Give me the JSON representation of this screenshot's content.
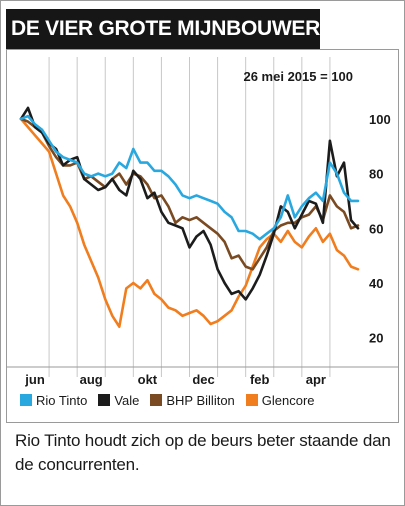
{
  "title": "DE VIER GROTE MIJNBOUWERS",
  "caption": "Rio Tinto houdt zich op de beurs beter staande dan de concurrenten.",
  "chart_data": {
    "type": "line",
    "subtitle": "26 mei 2015 = 100",
    "x_labels": [
      "jun",
      "aug",
      "okt",
      "dec",
      "feb",
      "apr"
    ],
    "y_ticks": [
      20,
      40,
      60,
      80,
      100
    ],
    "ylim": [
      10,
      108
    ],
    "grid": "vertical",
    "legend_position": "bottom",
    "x_range": [
      0,
      12
    ],
    "series": [
      {
        "name": "Rio Tinto",
        "color": "#29a8e0",
        "x": [
          0,
          0.25,
          0.5,
          0.75,
          1,
          1.25,
          1.5,
          1.75,
          2,
          2.25,
          2.5,
          2.75,
          3,
          3.25,
          3.5,
          3.75,
          4,
          4.25,
          4.5,
          4.75,
          5,
          5.25,
          5.5,
          5.75,
          6,
          6.25,
          6.5,
          6.75,
          7,
          7.25,
          7.5,
          7.75,
          8,
          8.25,
          8.5,
          8.75,
          9,
          9.25,
          9.5,
          9.75,
          10,
          10.25,
          10.5,
          10.75,
          11,
          11.25,
          11.5,
          11.75,
          12
        ],
        "values": [
          100,
          101,
          98,
          96,
          92,
          88,
          86,
          85,
          84,
          80,
          79,
          80,
          79,
          80,
          84,
          82,
          89,
          84,
          84,
          81,
          81,
          79,
          76,
          72,
          71,
          72,
          71,
          70,
          69,
          66,
          64,
          59,
          59,
          58,
          56,
          58,
          60,
          64,
          72,
          64,
          68,
          71,
          73,
          70,
          84,
          80,
          73,
          70,
          70
        ]
      },
      {
        "name": "Vale",
        "color": "#1c1c1c",
        "x": [
          0,
          0.25,
          0.5,
          0.75,
          1,
          1.25,
          1.5,
          1.75,
          2,
          2.25,
          2.5,
          2.75,
          3,
          3.25,
          3.5,
          3.75,
          4,
          4.25,
          4.5,
          4.75,
          5,
          5.25,
          5.5,
          5.75,
          6,
          6.25,
          6.5,
          6.75,
          7,
          7.25,
          7.5,
          7.75,
          8,
          8.25,
          8.5,
          8.75,
          9,
          9.25,
          9.5,
          9.75,
          10,
          10.25,
          10.5,
          10.75,
          11,
          11.25,
          11.5,
          11.75,
          12
        ],
        "values": [
          100,
          104,
          97,
          95,
          91,
          89,
          83,
          85,
          86,
          78,
          76,
          74,
          75,
          78,
          74,
          72,
          81,
          78,
          71,
          73,
          66,
          62,
          61,
          60,
          53,
          57,
          59,
          54,
          45,
          40,
          36,
          37,
          34,
          38,
          43,
          50,
          58,
          68,
          66,
          60,
          65,
          70,
          69,
          62,
          92,
          79,
          84,
          63,
          60
        ]
      },
      {
        "name": "BHP Billiton",
        "color": "#7a4a22",
        "x": [
          0,
          0.25,
          0.5,
          0.75,
          1,
          1.25,
          1.5,
          1.75,
          2,
          2.25,
          2.5,
          2.75,
          3,
          3.25,
          3.5,
          3.75,
          4,
          4.25,
          4.5,
          4.75,
          5,
          5.25,
          5.5,
          5.75,
          6,
          6.25,
          6.5,
          6.75,
          7,
          7.25,
          7.5,
          7.75,
          8,
          8.25,
          8.5,
          8.75,
          9,
          9.25,
          9.5,
          9.75,
          10,
          10.25,
          10.5,
          10.75,
          11,
          11.25,
          11.5,
          11.75,
          12
        ],
        "values": [
          100,
          99,
          97,
          95,
          90,
          86,
          83,
          83,
          84,
          78,
          79,
          77,
          75,
          78,
          80,
          76,
          80,
          79,
          76,
          71,
          72,
          68,
          62,
          64,
          63,
          64,
          62,
          60,
          58,
          55,
          49,
          50,
          46,
          45,
          49,
          53,
          59,
          61,
          62,
          62,
          64,
          65,
          68,
          63,
          72,
          68,
          66,
          60,
          61
        ]
      },
      {
        "name": "Glencore",
        "color": "#f07d1e",
        "x": [
          0,
          0.25,
          0.5,
          0.75,
          1,
          1.25,
          1.5,
          1.75,
          2,
          2.25,
          2.5,
          2.75,
          3,
          3.25,
          3.5,
          3.75,
          4,
          4.25,
          4.5,
          4.75,
          5,
          5.25,
          5.5,
          5.75,
          6,
          6.25,
          6.5,
          6.75,
          7,
          7.25,
          7.5,
          7.75,
          8,
          8.25,
          8.5,
          8.75,
          9,
          9.25,
          9.5,
          9.75,
          10,
          10.25,
          10.5,
          10.75,
          11,
          11.25,
          11.5,
          11.75,
          12
        ],
        "values": [
          100,
          97,
          94,
          91,
          88,
          80,
          72,
          68,
          62,
          54,
          48,
          42,
          34,
          28,
          24,
          38,
          40,
          38,
          41,
          36,
          34,
          31,
          30,
          28,
          29,
          30,
          28,
          25,
          26,
          28,
          30,
          35,
          39,
          46,
          53,
          56,
          58,
          55,
          59,
          55,
          53,
          57,
          60,
          55,
          58,
          52,
          50,
          46,
          45
        ]
      }
    ]
  }
}
